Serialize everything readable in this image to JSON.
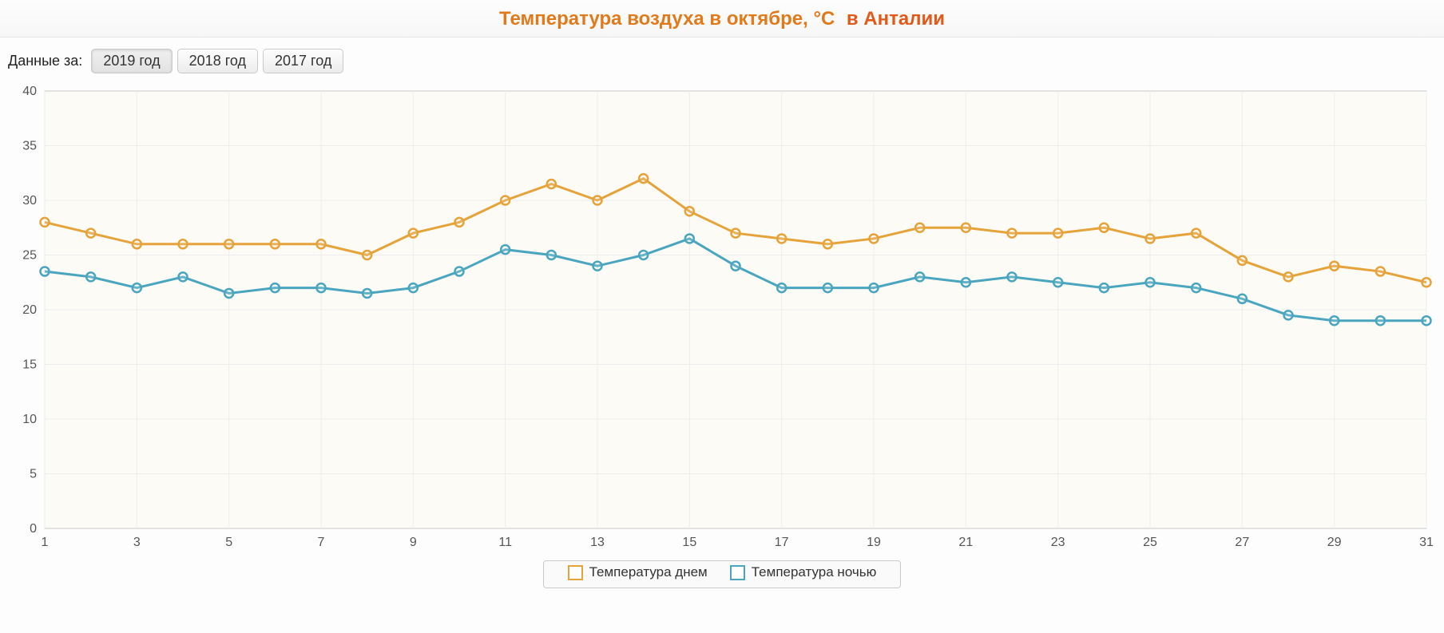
{
  "header": {
    "title_main": "Температура воздуха в октябре, °C",
    "title_sub": "в Анталии"
  },
  "controls": {
    "label": "Данные за:",
    "years": [
      "2019 год",
      "2018 год",
      "2017 год"
    ],
    "active_index": 0
  },
  "chart": {
    "type": "line",
    "background_color": "#fcfbf6",
    "grid_color": "#ededed",
    "border_color": "#c8c8c8",
    "ylim": [
      0,
      40
    ],
    "ytick_step": 5,
    "x_values": [
      1,
      2,
      3,
      4,
      5,
      6,
      7,
      8,
      9,
      10,
      11,
      12,
      13,
      14,
      15,
      16,
      17,
      18,
      19,
      20,
      21,
      22,
      23,
      24,
      25,
      26,
      27,
      28,
      29,
      30,
      31
    ],
    "x_tick_values": [
      1,
      3,
      5,
      7,
      9,
      11,
      13,
      15,
      17,
      19,
      21,
      23,
      25,
      27,
      29,
      31
    ],
    "axis_fontsize": 16,
    "line_width": 3,
    "marker_radius": 5.5,
    "series": [
      {
        "name": "Температура днем",
        "color": "#e6a33a",
        "values": [
          28,
          27,
          26,
          26,
          26,
          26,
          26,
          25,
          27,
          28,
          30,
          31.5,
          30,
          32,
          29,
          27,
          26.5,
          26,
          26.5,
          27.5,
          27.5,
          27,
          27,
          27.5,
          26.5,
          27,
          24.5,
          23,
          24,
          23.5,
          22.5
        ]
      },
      {
        "name": "Температура ночью",
        "color": "#4aa6bf",
        "values": [
          23.5,
          23,
          22,
          23,
          21.5,
          22,
          22,
          21.5,
          22,
          23.5,
          25.5,
          25,
          24,
          25,
          26.5,
          24,
          22,
          22,
          22,
          23,
          22.5,
          23,
          22.5,
          22,
          22.5,
          22,
          21,
          19.5,
          19,
          19,
          19
        ]
      }
    ]
  },
  "legend": {
    "items": [
      {
        "label": "Температура днем",
        "color": "#e6a33a"
      },
      {
        "label": "Температура ночью",
        "color": "#4aa6bf"
      }
    ]
  }
}
